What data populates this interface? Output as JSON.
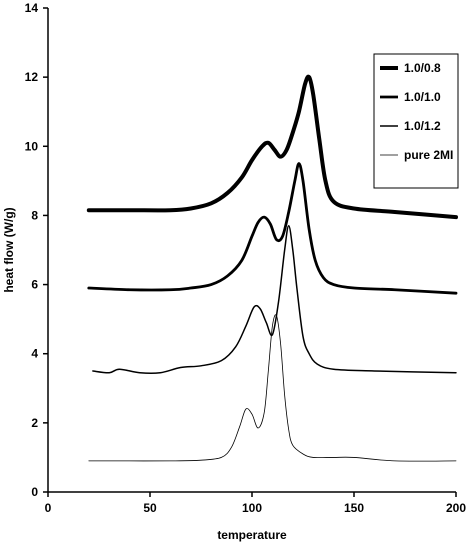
{
  "chart_data": {
    "type": "line",
    "title": "",
    "xlabel": "temperature",
    "ylabel": "heat flow (W/g)",
    "xlim": [
      0,
      200
    ],
    "ylim": [
      0,
      14
    ],
    "xticks": [
      0,
      50,
      100,
      150,
      200
    ],
    "yticks": [
      0,
      2,
      4,
      6,
      8,
      10,
      12,
      14
    ],
    "grid": false,
    "legend_position": "top-right",
    "series": [
      {
        "name": "1.0/0.8",
        "color": "#000000",
        "x": [
          20,
          40,
          60,
          70,
          80,
          88,
          95,
          100,
          105,
          108,
          111,
          114,
          117,
          120,
          123,
          126,
          128,
          130,
          133,
          136,
          140,
          150,
          170,
          200
        ],
        "y": [
          8.15,
          8.15,
          8.15,
          8.2,
          8.35,
          8.65,
          9.1,
          9.6,
          10.0,
          10.1,
          9.9,
          9.7,
          9.9,
          10.4,
          11.0,
          11.8,
          12.0,
          11.5,
          10.2,
          9.0,
          8.4,
          8.2,
          8.1,
          7.95
        ]
      },
      {
        "name": "1.0/1.0",
        "color": "#000000",
        "x": [
          20,
          40,
          60,
          70,
          80,
          88,
          95,
          100,
          103,
          106,
          109,
          112,
          115,
          118,
          121,
          123,
          125,
          128,
          131,
          135,
          140,
          150,
          170,
          200
        ],
        "y": [
          5.9,
          5.85,
          5.85,
          5.9,
          6.0,
          6.25,
          6.7,
          7.4,
          7.8,
          7.95,
          7.75,
          7.3,
          7.4,
          8.1,
          9.0,
          9.5,
          9.0,
          7.6,
          6.7,
          6.2,
          6.0,
          5.9,
          5.85,
          5.75
        ]
      },
      {
        "name": "1.0/1.2",
        "color": "#000000",
        "x": [
          22,
          30,
          35,
          45,
          55,
          65,
          75,
          85,
          92,
          97,
          101,
          104,
          107,
          110,
          113,
          116,
          118,
          120,
          122,
          125,
          128,
          132,
          140,
          160,
          200
        ],
        "y": [
          3.5,
          3.45,
          3.55,
          3.45,
          3.45,
          3.6,
          3.65,
          3.8,
          4.2,
          4.8,
          5.35,
          5.3,
          4.9,
          4.55,
          5.5,
          7.0,
          7.7,
          7.0,
          5.9,
          4.5,
          4.0,
          3.7,
          3.55,
          3.5,
          3.45
        ]
      },
      {
        "name": "pure 2MI",
        "color": "#000000",
        "x": [
          20,
          40,
          60,
          75,
          85,
          90,
          94,
          97,
          100,
          103,
          106,
          108,
          110,
          112,
          114,
          116,
          118,
          120,
          125,
          130,
          140,
          150,
          170,
          200
        ],
        "y": [
          0.9,
          0.9,
          0.9,
          0.92,
          1.0,
          1.3,
          1.9,
          2.4,
          2.25,
          1.85,
          2.3,
          3.5,
          4.8,
          5.1,
          4.3,
          2.8,
          1.8,
          1.35,
          1.1,
          1.0,
          1.0,
          1.0,
          0.9,
          0.9
        ]
      }
    ]
  }
}
